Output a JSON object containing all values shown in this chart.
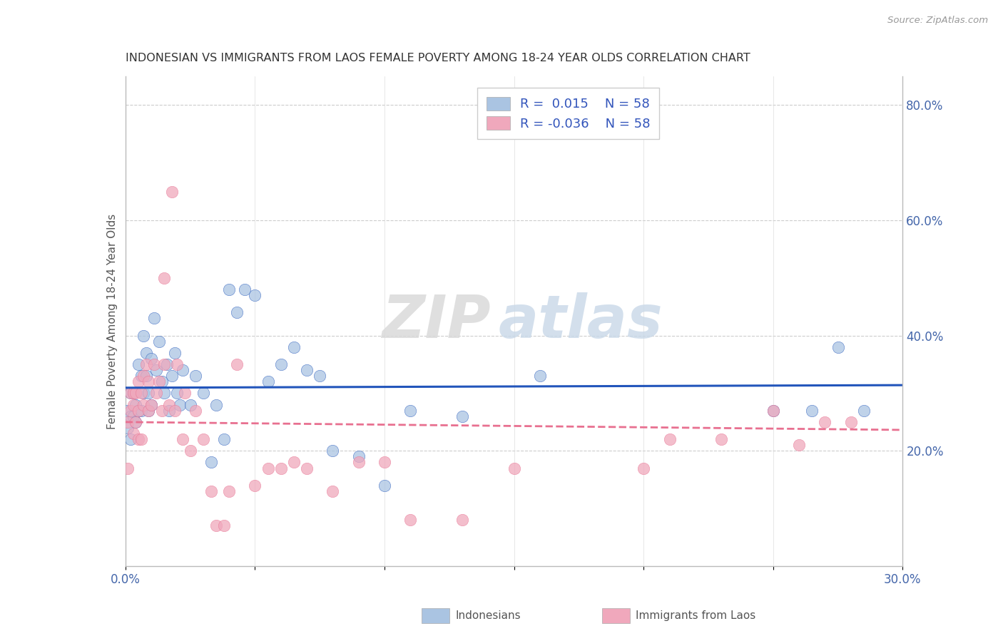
{
  "title": "INDONESIAN VS IMMIGRANTS FROM LAOS FEMALE POVERTY AMONG 18-24 YEAR OLDS CORRELATION CHART",
  "source": "Source: ZipAtlas.com",
  "ylabel": "Female Poverty Among 18-24 Year Olds",
  "xlim": [
    0.0,
    0.3
  ],
  "ylim": [
    0.0,
    0.85
  ],
  "xticks": [
    0.0,
    0.05,
    0.1,
    0.15,
    0.2,
    0.25,
    0.3
  ],
  "xtick_labels": [
    "0.0%",
    "",
    "",
    "",
    "",
    "",
    "30.0%"
  ],
  "yticks_right": [
    0.2,
    0.4,
    0.6,
    0.8
  ],
  "ytick_labels_right": [
    "20.0%",
    "40.0%",
    "60.0%",
    "80.0%"
  ],
  "series1_color": "#aac4e2",
  "series2_color": "#f0a8bc",
  "line1_color": "#2255bb",
  "line2_color": "#e87090",
  "R1": 0.015,
  "R2": -0.036,
  "N1": 58,
  "N2": 58,
  "legend_label1": "Indonesians",
  "legend_label2": "Immigrants from Laos",
  "watermark_zip": "ZIP",
  "watermark_atlas": "atlas",
  "indo_x": [
    0.001,
    0.001,
    0.002,
    0.002,
    0.002,
    0.003,
    0.003,
    0.004,
    0.004,
    0.005,
    0.005,
    0.006,
    0.006,
    0.007,
    0.007,
    0.008,
    0.008,
    0.009,
    0.009,
    0.01,
    0.01,
    0.011,
    0.012,
    0.013,
    0.014,
    0.015,
    0.016,
    0.017,
    0.018,
    0.019,
    0.02,
    0.021,
    0.022,
    0.025,
    0.027,
    0.03,
    0.033,
    0.035,
    0.038,
    0.04,
    0.043,
    0.046,
    0.05,
    0.055,
    0.06,
    0.065,
    0.07,
    0.075,
    0.08,
    0.09,
    0.1,
    0.11,
    0.13,
    0.16,
    0.25,
    0.265,
    0.275,
    0.285
  ],
  "indo_y": [
    0.27,
    0.24,
    0.3,
    0.26,
    0.22,
    0.3,
    0.26,
    0.28,
    0.25,
    0.35,
    0.27,
    0.33,
    0.27,
    0.4,
    0.3,
    0.37,
    0.33,
    0.3,
    0.27,
    0.36,
    0.28,
    0.43,
    0.34,
    0.39,
    0.32,
    0.3,
    0.35,
    0.27,
    0.33,
    0.37,
    0.3,
    0.28,
    0.34,
    0.28,
    0.33,
    0.3,
    0.18,
    0.28,
    0.22,
    0.48,
    0.44,
    0.48,
    0.47,
    0.32,
    0.35,
    0.38,
    0.34,
    0.33,
    0.2,
    0.19,
    0.14,
    0.27,
    0.26,
    0.33,
    0.27,
    0.27,
    0.38,
    0.27
  ],
  "laos_x": [
    0.001,
    0.001,
    0.002,
    0.002,
    0.003,
    0.003,
    0.003,
    0.004,
    0.004,
    0.005,
    0.005,
    0.005,
    0.006,
    0.006,
    0.007,
    0.007,
    0.008,
    0.009,
    0.009,
    0.01,
    0.011,
    0.012,
    0.013,
    0.014,
    0.015,
    0.015,
    0.017,
    0.018,
    0.019,
    0.02,
    0.022,
    0.023,
    0.025,
    0.027,
    0.03,
    0.033,
    0.035,
    0.038,
    0.04,
    0.043,
    0.05,
    0.055,
    0.06,
    0.065,
    0.07,
    0.08,
    0.09,
    0.1,
    0.11,
    0.13,
    0.15,
    0.2,
    0.21,
    0.23,
    0.25,
    0.26,
    0.27,
    0.28
  ],
  "laos_y": [
    0.17,
    0.25,
    0.27,
    0.3,
    0.23,
    0.28,
    0.3,
    0.25,
    0.3,
    0.32,
    0.27,
    0.22,
    0.3,
    0.22,
    0.33,
    0.28,
    0.35,
    0.27,
    0.32,
    0.28,
    0.35,
    0.3,
    0.32,
    0.27,
    0.35,
    0.5,
    0.28,
    0.65,
    0.27,
    0.35,
    0.22,
    0.3,
    0.2,
    0.27,
    0.22,
    0.13,
    0.07,
    0.07,
    0.13,
    0.35,
    0.14,
    0.17,
    0.17,
    0.18,
    0.17,
    0.13,
    0.18,
    0.18,
    0.08,
    0.08,
    0.17,
    0.17,
    0.22,
    0.22,
    0.27,
    0.21,
    0.25,
    0.25
  ]
}
